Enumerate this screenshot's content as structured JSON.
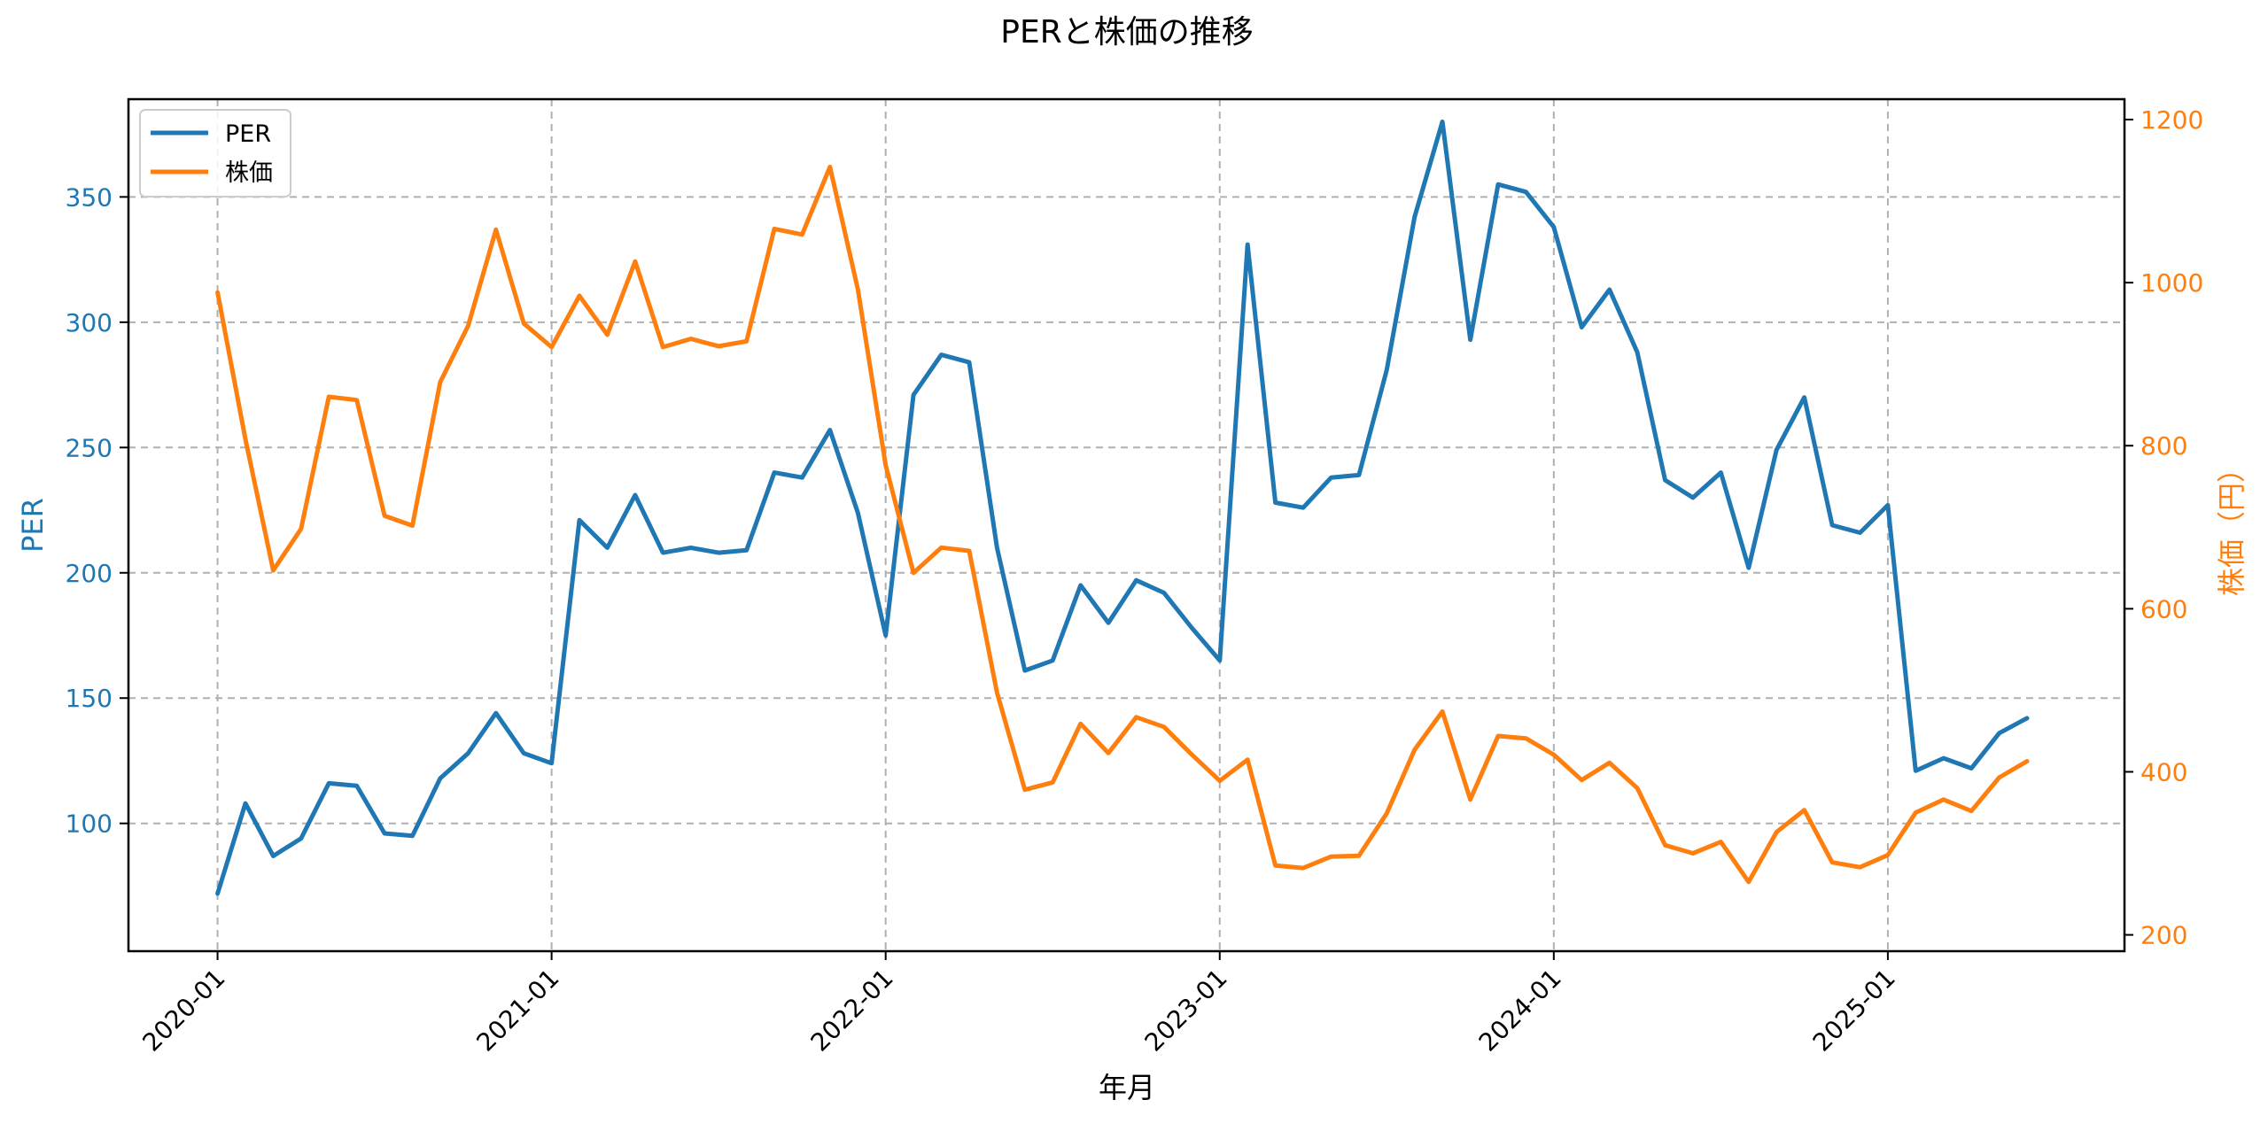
{
  "chart_data": {
    "type": "line",
    "title": "PERと株価の推移",
    "xlabel": "年月",
    "ylabel_left": "PER",
    "ylabel_right": "株価（円）",
    "x_start": "2020-01",
    "x_ticks": [
      "2020-01",
      "2021-01",
      "2022-01",
      "2023-01",
      "2024-01",
      "2025-01"
    ],
    "xlim_months": [
      -3.2,
      68.5
    ],
    "ylim_left": [
      49,
      389
    ],
    "ylim_right": [
      180,
      1225
    ],
    "y_ticks_left": [
      100,
      150,
      200,
      250,
      300,
      350
    ],
    "y_ticks_right": [
      200,
      400,
      600,
      800,
      1000,
      1200
    ],
    "grid": true,
    "legend_position": "upper-left",
    "series": [
      {
        "name": "PER",
        "axis": "left",
        "color": "#1f77b4",
        "values": [
          72,
          108,
          87,
          94,
          116,
          115,
          96,
          95,
          118,
          128,
          144,
          128,
          124,
          221,
          210,
          231,
          208,
          210,
          208,
          209,
          240,
          238,
          257,
          224,
          175,
          271,
          287,
          284,
          210,
          161,
          165,
          195,
          180,
          197,
          192,
          178,
          165,
          331,
          228,
          226,
          238,
          239,
          281,
          342,
          380,
          293,
          355,
          352,
          338,
          298,
          313,
          288,
          237,
          230,
          240,
          202,
          249,
          270,
          219,
          216,
          227,
          121,
          126,
          122,
          136,
          142
        ]
      },
      {
        "name": "株価",
        "axis": "right",
        "color": "#ff7f0e",
        "values": [
          988,
          808,
          647,
          698,
          860,
          856,
          714,
          702,
          878,
          947,
          1065,
          950,
          921,
          984,
          936,
          1026,
          921,
          931,
          922,
          928,
          1066,
          1059,
          1142,
          992,
          776,
          644,
          675,
          671,
          497,
          378,
          387,
          459,
          423,
          467,
          455,
          421,
          389,
          415,
          285,
          282,
          296,
          297,
          349,
          427,
          474,
          366,
          444,
          441,
          421,
          390,
          411,
          380,
          310,
          300,
          314,
          265,
          326,
          353,
          289,
          283,
          298,
          350,
          366,
          352,
          393,
          413
        ]
      }
    ]
  }
}
